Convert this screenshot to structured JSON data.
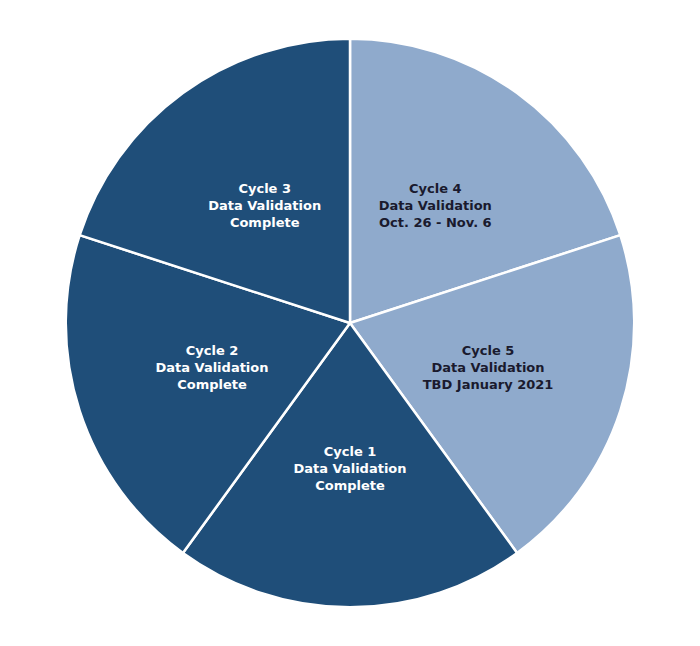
{
  "chart_data": {
    "type": "pie",
    "categories": [
      "Cycle 4\nData Validation\nOct. 26 - Nov. 6",
      "Cycle 5\nData Validation\nTBD January 2021",
      "Cycle 1\nData Validation\nComplete",
      "Cycle 2\nData Validation\nComplete",
      "Cycle 3\nData Validation\nComplete"
    ],
    "values": [
      20,
      20,
      20,
      20,
      20
    ],
    "colors": [
      "#8FAACC",
      "#8FAACC",
      "#1F4E79",
      "#1F4E79",
      "#1F4E79"
    ]
  }
}
